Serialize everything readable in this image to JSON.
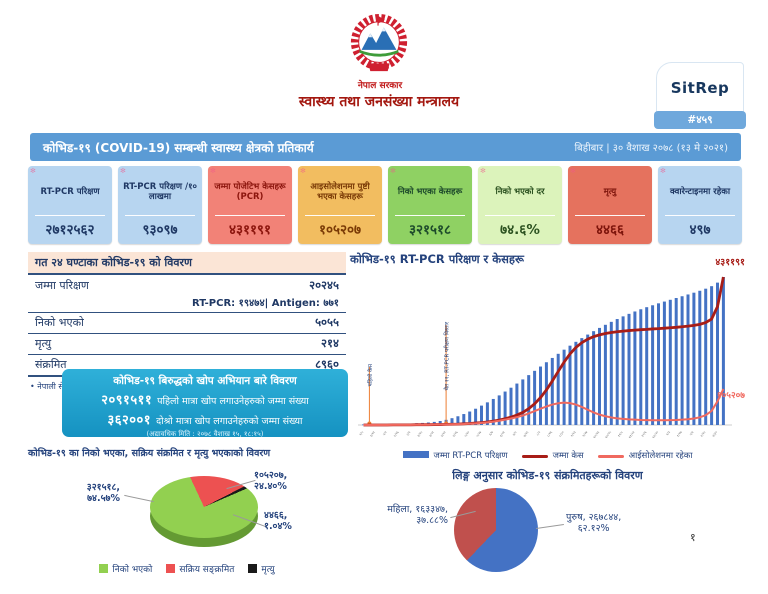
{
  "header": {
    "gov_name": "नेपाल सरकार",
    "ministry": "स्वास्थ्य तथा जनसंख्या मन्त्रालय",
    "sitrep_label": "SitRep",
    "sitrep_number": "#४५९"
  },
  "title_bar": {
    "title": "कोभिड-१९ (COVID-19) सम्बन्धी स्वास्थ्य क्षेत्रको प्रतिकार्य",
    "date": "बिहीबार | ३० वैशाख २०७८ (१३ मे २०२१)"
  },
  "decoration_asterisk": "✻",
  "stat_cards": [
    {
      "label": "RT-PCR परिक्षण",
      "value": "२७१२५६२",
      "bg": "#b7d5f0",
      "fg": "#1f3864"
    },
    {
      "label": "RT-PCR परिक्षण /१० लाखमा",
      "value": "९३०९७",
      "bg": "#b7d5f0",
      "fg": "#1f3864"
    },
    {
      "label": "जम्मा पोजेटिभ केसहरू (PCR)",
      "value": "४३११९१",
      "bg": "#f28277",
      "fg": "#8c150d"
    },
    {
      "label": "आइसोलेशनमा पुष्टी भएका केसहरू",
      "value": "१०५२०७",
      "bg": "#f2bd60",
      "fg": "#7a3a06"
    },
    {
      "label": "निको भएका केसहरू",
      "value": "३२१५१८",
      "bg": "#8fd163",
      "fg": "#1d4a2b"
    },
    {
      "label": "निको भएको दर",
      "value": "७४.६%",
      "bg": "#dcf3bb",
      "fg": "#2c5220"
    },
    {
      "label": "मृत्यु",
      "value": "४४६६",
      "bg": "#e5725e",
      "fg": "#7d140b"
    },
    {
      "label": "क्वारेन्टाइनमा रहेका",
      "value": "४९७",
      "bg": "#b7d5f0",
      "fg": "#1f3864"
    }
  ],
  "last24": {
    "header": "गत २४ घण्टाका कोभिड-१९ को विवरण",
    "rows": [
      {
        "label": "जम्मा परिक्षण",
        "value": "२०२४५"
      },
      {
        "label": "",
        "value": "RT-PCR: १९४७४| Antigen: ७७१",
        "sub": true
      },
      {
        "label": "निको भएको",
        "value": "५०५५"
      },
      {
        "label": "मृत्यु",
        "value": "२१४"
      },
      {
        "label": "संक्रमित",
        "value": "८९६०"
      }
    ],
    "footnote": "• नेपाली सेनाद्वारा विभिन्न मितिमा शव व्यवस्थापन गरेका समेत"
  },
  "vaccination": {
    "title": "कोभिड-१९ बिरुद्धको खोप अभियान बारे विवरण",
    "lines": [
      {
        "number": "२०९१५११",
        "text": "पहिलो मात्रा खोप लगाउनेहरुको जम्मा संख्या"
      },
      {
        "number": "३६२००१",
        "text": "दोश्रो मात्रा खोप लगाउनेहरुको जम्मा संख्या"
      }
    ],
    "updated": "(अद्यावधिक मिति : २०७८ वैशाख १५, १८:१५)"
  },
  "page_number": "१",
  "chart_data": [
    {
      "id": "tests_cases_chart",
      "type": "combo-bar-line",
      "title": "कोभिड-१९ RT-PCR परिक्षण र केसहरू",
      "legend": [
        {
          "label": "जम्मा RT-PCR परिक्षण",
          "color": "#4472c4",
          "style": "bar"
        },
        {
          "label": "जम्मा केस",
          "color": "#a81d17",
          "style": "line"
        },
        {
          "label": "आईसोलेशनमा रहेका",
          "color": "#f0695f",
          "style": "line"
        }
      ],
      "annotations": [
        {
          "label": "पहिलो केस",
          "x_index": 1
        },
        {
          "label": "चैत ११, RT-PCR परीक्षण विस्तार",
          "x_index": 14
        }
      ],
      "end_labels": {
        "cases": "४३११९१",
        "isolation": "१०५२०७"
      },
      "totals": {
        "tests_cumulative": 2712562,
        "cases_cumulative": 431191,
        "in_isolation": 105207
      },
      "series": [
        {
          "name": "जम्मा RT-PCR परिक्षण",
          "type": "bar",
          "color": "#4472c4",
          "normalized": [
            0.004,
            0.004,
            0.005,
            0.005,
            0.006,
            0.007,
            0.008,
            0.009,
            0.01,
            0.012,
            0.014,
            0.017,
            0.021,
            0.027,
            0.035,
            0.046,
            0.059,
            0.074,
            0.091,
            0.11,
            0.131,
            0.153,
            0.176,
            0.2,
            0.226,
            0.252,
            0.28,
            0.308,
            0.337,
            0.366,
            0.395,
            0.424,
            0.453,
            0.481,
            0.509,
            0.536,
            0.562,
            0.587,
            0.611,
            0.634,
            0.656,
            0.677,
            0.697,
            0.716,
            0.734,
            0.751,
            0.767,
            0.782,
            0.796,
            0.809,
            0.822,
            0.834,
            0.846,
            0.858,
            0.87,
            0.882,
            0.894,
            0.907,
            0.921,
            0.938,
            0.962,
            1.0
          ]
        },
        {
          "name": "जम्मा केस",
          "type": "line",
          "color": "#a81d17",
          "normalized": [
            0,
            0,
            0,
            0,
            0,
            0.001,
            0.001,
            0.001,
            0.001,
            0.002,
            0.002,
            0.002,
            0.003,
            0.003,
            0.004,
            0.005,
            0.006,
            0.008,
            0.01,
            0.013,
            0.016,
            0.02,
            0.026,
            0.033,
            0.042,
            0.053,
            0.067,
            0.085,
            0.11,
            0.143,
            0.185,
            0.237,
            0.297,
            0.362,
            0.425,
            0.48,
            0.524,
            0.556,
            0.58,
            0.597,
            0.609,
            0.618,
            0.625,
            0.63,
            0.634,
            0.638,
            0.641,
            0.644,
            0.646,
            0.649,
            0.651,
            0.654,
            0.657,
            0.66,
            0.664,
            0.668,
            0.673,
            0.68,
            0.692,
            0.716,
            0.8,
            1.0
          ]
        },
        {
          "name": "आईसोलेशनमा रहेका",
          "type": "line",
          "color": "#f0695f",
          "normalized": [
            0,
            0,
            0,
            0,
            0,
            0.001,
            0.001,
            0.001,
            0.001,
            0.002,
            0.002,
            0.002,
            0.003,
            0.003,
            0.004,
            0.005,
            0.006,
            0.007,
            0.009,
            0.011,
            0.014,
            0.018,
            0.023,
            0.029,
            0.036,
            0.044,
            0.053,
            0.064,
            0.078,
            0.094,
            0.11,
            0.125,
            0.138,
            0.147,
            0.151,
            0.148,
            0.138,
            0.122,
            0.103,
            0.085,
            0.07,
            0.059,
            0.051,
            0.045,
            0.041,
            0.038,
            0.036,
            0.034,
            0.033,
            0.032,
            0.032,
            0.032,
            0.033,
            0.034,
            0.036,
            0.039,
            0.044,
            0.052,
            0.066,
            0.095,
            0.16,
            0.244
          ]
        }
      ],
      "x_tick_labels_approx": [
        "१/५",
        "१/१९",
        "२/२",
        "२/१६",
        "३/१",
        "३/१५",
        "३/२९",
        "४/१२",
        "४/२६",
        "५/१०",
        "५/२४",
        "६/७",
        "६/२१",
        "७/५",
        "७/१९",
        "८/२",
        "८/१६",
        "८/३०",
        "९/१३",
        "९/२७",
        "१०/११",
        "१०/२५",
        "११/८",
        "११/२२",
        "१२/६",
        "१२/२०",
        "१/३",
        "१/१७",
        "२/१",
        "२/१५",
        "४/३०"
      ]
    },
    {
      "id": "outcome_pie",
      "type": "pie",
      "title": "कोभिड-१९ का निको भएका, सक्रिय संक्रमित र मृत्यु भएकाको विवरण",
      "slices": [
        {
          "label": "निको भएको",
          "value": 321518,
          "pct": 74.57,
          "color": "#92d050",
          "data_label_lines": [
            "३२१५१८,",
            "७४.५७%"
          ]
        },
        {
          "label": "सक्रिय सङ्क्रमित",
          "value": 105207,
          "pct": 24.4,
          "color": "#ed5151",
          "data_label_lines": [
            "१०५२०७,",
            "२४.४०%"
          ]
        },
        {
          "label": "मृत्यु",
          "value": 4466,
          "pct": 1.04,
          "color": "#1a1a1a",
          "data_label_lines": [
            "४४६६,",
            "१.०४%"
          ]
        }
      ],
      "legend": [
        "निको भएको",
        "सक्रिय सङ्क्रमित",
        "मृत्यु"
      ]
    },
    {
      "id": "gender_pie",
      "type": "pie",
      "title": "लिङ्ग अनुसार कोभिड-१९ संक्रमितहरूको विवरण",
      "slices": [
        {
          "label": "पुरुष",
          "value": 267844,
          "pct": 62.12,
          "color": "#4472c4",
          "data_label_lines": [
            "पुरुष, २६७८४४,",
            "६२.१२%"
          ]
        },
        {
          "label": "महिला",
          "value": 163347,
          "pct": 37.88,
          "color": "#c0504d",
          "data_label_lines": [
            "महिला, १६३३४७,",
            "३७.८८%"
          ]
        }
      ]
    }
  ]
}
